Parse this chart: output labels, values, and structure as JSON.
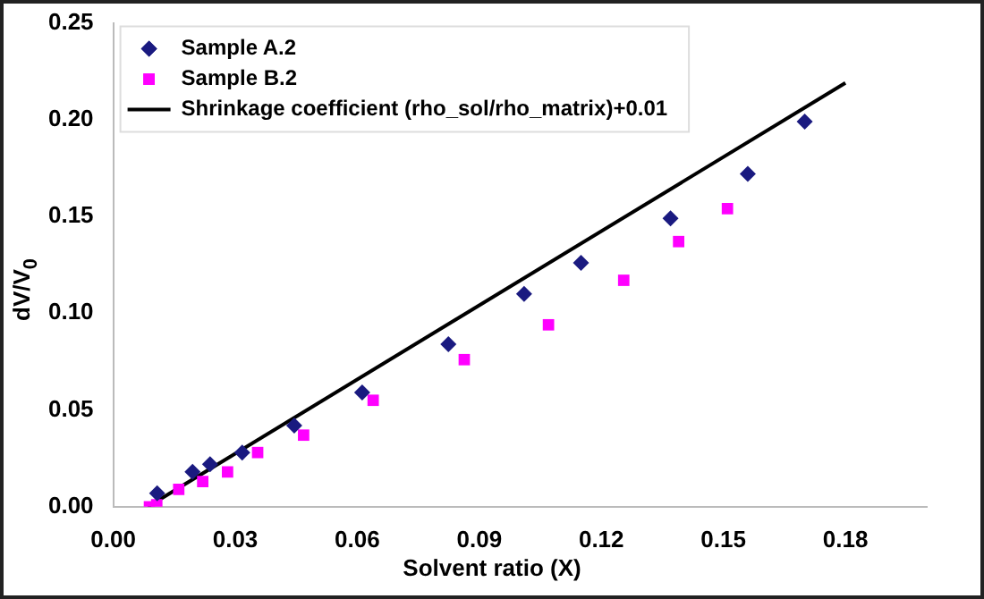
{
  "chart_data": {
    "type": "scatter",
    "xlabel": "Solvent ratio (X)",
    "ylabel": "dV/V$_{0}$",
    "xlim": [
      0,
      0.2
    ],
    "xticks": [
      {
        "value": 0,
        "label": "0.00"
      },
      {
        "value": 0.03,
        "label": "0.03"
      },
      {
        "value": 0.06,
        "label": "0.06"
      },
      {
        "value": 0.09,
        "label": "0.09"
      },
      {
        "value": 0.12,
        "label": "0.12"
      },
      {
        "value": 0.15,
        "label": "0.15"
      },
      {
        "value": 0.18,
        "label": "0.18"
      }
    ],
    "ylim": [
      0,
      0.25
    ],
    "yticks": [
      {
        "value": 0,
        "label": "0.00"
      },
      {
        "value": 0.05,
        "label": "0.05"
      },
      {
        "value": 0.1,
        "label": "0.10"
      },
      {
        "value": 0.15,
        "label": "0.15"
      },
      {
        "value": 0.2,
        "label": "0.20"
      },
      {
        "value": 0.25,
        "label": "0.25"
      }
    ],
    "grid": false,
    "legend": "top left",
    "series": [
      {
        "name": "Sample A.2",
        "color": "#1a1a80",
        "marker": "diamond",
        "x": [
          0.0108,
          0.0195,
          0.0238,
          0.0317,
          0.0445,
          0.0612,
          0.0824,
          0.101,
          0.115,
          0.137,
          0.156,
          0.17
        ],
        "values": [
          0.007,
          0.018,
          0.022,
          0.028,
          0.042,
          0.059,
          0.084,
          0.11,
          0.126,
          0.149,
          0.172,
          0.199
        ]
      },
      {
        "name": "Sample B.2",
        "color": "#ff00ff",
        "marker": "square",
        "x": [
          0.0089,
          0.0107,
          0.0161,
          0.022,
          0.0281,
          0.0355,
          0.0468,
          0.0639,
          0.0863,
          0.107,
          0.1255,
          0.139,
          0.151
        ],
        "values": [
          0.0,
          0.001,
          0.009,
          0.013,
          0.018,
          0.028,
          0.037,
          0.055,
          0.076,
          0.094,
          0.117,
          0.137,
          0.154
        ]
      },
      {
        "name": "Shrinkage coefficient (rho_sol/rho_matrix)+0.01",
        "type": "line",
        "color": "#000000",
        "marker": "none",
        "x": [
          0.0085,
          0.18
        ],
        "values": [
          0,
          0.219
        ]
      }
    ]
  }
}
